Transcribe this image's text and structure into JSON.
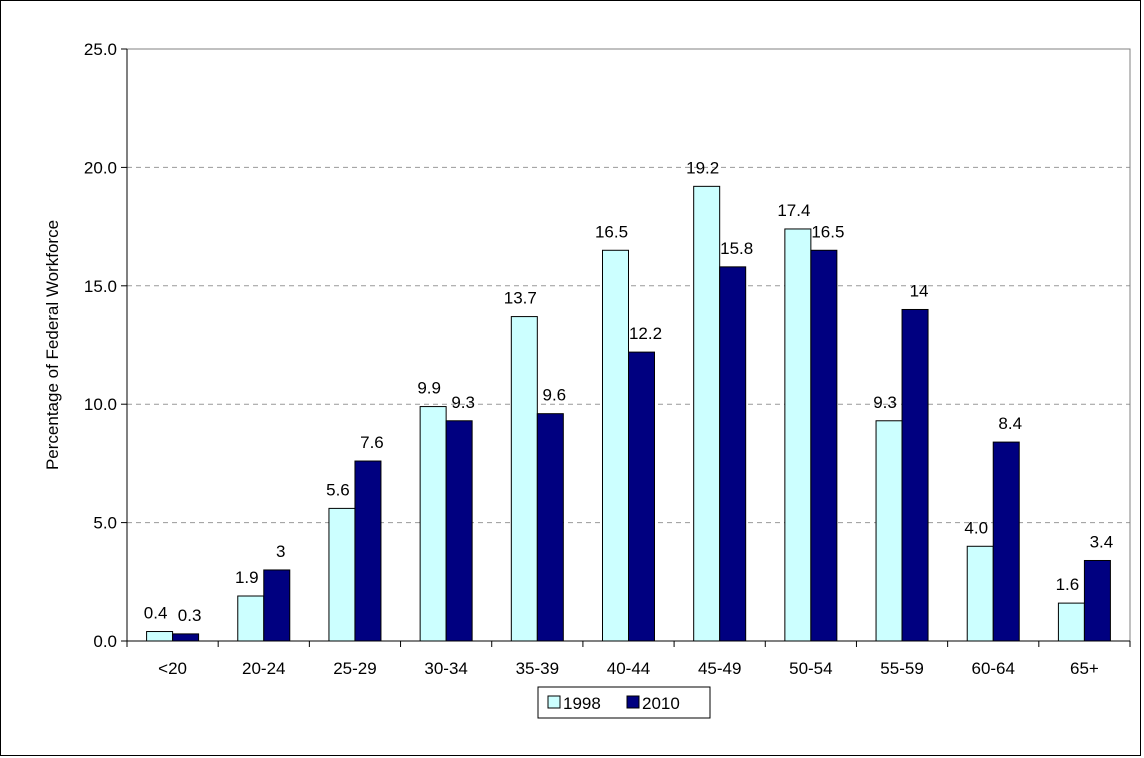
{
  "chart_data": {
    "type": "bar",
    "title": "",
    "xlabel": "",
    "ylabel": "Percentage of Federal Workforce",
    "ylim": [
      0,
      25
    ],
    "yticks": [
      "0.0",
      "5.0",
      "10.0",
      "15.0",
      "20.0",
      "25.0"
    ],
    "grid": true,
    "legend_position": "bottom",
    "categories": [
      "<20",
      "20-24",
      "25-29",
      "30-34",
      "35-39",
      "40-44",
      "45-49",
      "50-54",
      "55-59",
      "60-64",
      "65+"
    ],
    "series": [
      {
        "name": "1998",
        "color": "#CCFFFF",
        "values": [
          0.4,
          1.9,
          5.6,
          9.9,
          13.7,
          16.5,
          19.2,
          17.4,
          9.3,
          4.0,
          1.6
        ],
        "labels": [
          "0.4",
          "1.9",
          "5.6",
          "9.9",
          "13.7",
          "16.5",
          "19.2",
          "17.4",
          "9.3",
          "4.0",
          "1.6"
        ]
      },
      {
        "name": "2010",
        "color": "#000080",
        "values": [
          0.3,
          3,
          7.6,
          9.3,
          9.6,
          12.2,
          15.8,
          16.5,
          14,
          8.4,
          3.4
        ],
        "labels": [
          "0.3",
          "3",
          "7.6",
          "9.3",
          "9.6",
          "12.2",
          "15.8",
          "16.5",
          "14",
          "8.4",
          "3.4"
        ]
      }
    ]
  }
}
